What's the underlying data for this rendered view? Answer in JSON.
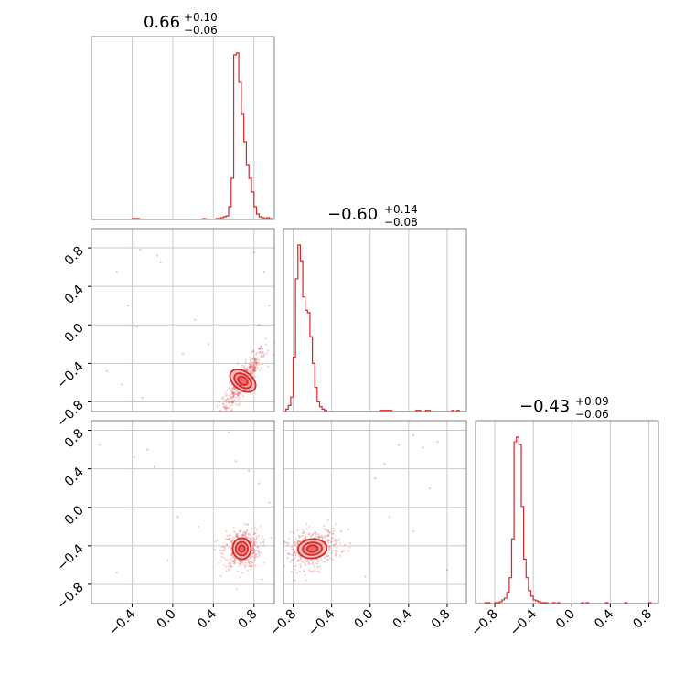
{
  "chart_data": [
    {
      "type": "histogram",
      "panel": "p0-hist",
      "title": {
        "median": "0.66",
        "plus": "+0.10",
        "minus": "−0.06"
      },
      "xlim": [
        -0.8,
        1.0
      ],
      "grid": true,
      "bin_width": 0.025,
      "bins": [
        [
          -0.4,
          1
        ],
        [
          -0.375,
          1
        ],
        [
          -0.35,
          1
        ],
        [
          0.3,
          1
        ],
        [
          0.425,
          1
        ],
        [
          0.45,
          1
        ],
        [
          0.475,
          2
        ],
        [
          0.5,
          3
        ],
        [
          0.525,
          4
        ],
        [
          0.55,
          14
        ],
        [
          0.575,
          45
        ],
        [
          0.6,
          180
        ],
        [
          0.625,
          182
        ],
        [
          0.65,
          150
        ],
        [
          0.675,
          115
        ],
        [
          0.7,
          85
        ],
        [
          0.725,
          60
        ],
        [
          0.75,
          45
        ],
        [
          0.775,
          30
        ],
        [
          0.8,
          14
        ],
        [
          0.825,
          6
        ],
        [
          0.85,
          3
        ],
        [
          0.875,
          2
        ],
        [
          0.9,
          1
        ],
        [
          0.925,
          2
        ],
        [
          0.95,
          1
        ]
      ]
    },
    {
      "type": "histogram",
      "panel": "p1-hist",
      "title": {
        "median": "−0.60",
        "plus": "+0.14",
        "minus": "−0.08"
      },
      "xlim": [
        -0.9,
        1.0
      ],
      "grid": true,
      "bin_width": 0.025,
      "bins": [
        [
          -0.875,
          2
        ],
        [
          -0.85,
          5
        ],
        [
          -0.825,
          12
        ],
        [
          -0.8,
          45
        ],
        [
          -0.775,
          110
        ],
        [
          -0.75,
          138
        ],
        [
          -0.725,
          125
        ],
        [
          -0.7,
          95
        ],
        [
          -0.675,
          84
        ],
        [
          -0.65,
          82
        ],
        [
          -0.625,
          62
        ],
        [
          -0.6,
          40
        ],
        [
          -0.575,
          20
        ],
        [
          -0.55,
          8
        ],
        [
          -0.525,
          4
        ],
        [
          -0.5,
          2
        ],
        [
          -0.475,
          1
        ],
        [
          0.1,
          1
        ],
        [
          0.125,
          1
        ],
        [
          0.15,
          1
        ],
        [
          0.175,
          1
        ],
        [
          0.2,
          1
        ],
        [
          0.475,
          1
        ],
        [
          0.5,
          1
        ],
        [
          0.575,
          1
        ],
        [
          0.6,
          1
        ],
        [
          0.85,
          1
        ],
        [
          0.9,
          1
        ]
      ]
    },
    {
      "type": "histogram",
      "panel": "p2-hist",
      "title": {
        "median": "−0.43",
        "plus": "+0.09",
        "minus": "−0.06"
      },
      "xlim": [
        -1.0,
        0.9
      ],
      "grid": true,
      "bin_width": 0.025,
      "bins": [
        [
          -0.9,
          1
        ],
        [
          -0.875,
          1
        ],
        [
          -0.8,
          1
        ],
        [
          -0.775,
          1
        ],
        [
          -0.75,
          2
        ],
        [
          -0.725,
          4
        ],
        [
          -0.7,
          6
        ],
        [
          -0.675,
          12
        ],
        [
          -0.65,
          28
        ],
        [
          -0.625,
          70
        ],
        [
          -0.6,
          175
        ],
        [
          -0.575,
          180
        ],
        [
          -0.55,
          172
        ],
        [
          -0.525,
          105
        ],
        [
          -0.5,
          48
        ],
        [
          -0.475,
          28
        ],
        [
          -0.45,
          14
        ],
        [
          -0.425,
          8
        ],
        [
          -0.4,
          4
        ],
        [
          -0.375,
          3
        ],
        [
          -0.35,
          2
        ],
        [
          -0.325,
          1
        ],
        [
          -0.3,
          1
        ],
        [
          -0.275,
          1
        ],
        [
          -0.2,
          1
        ],
        [
          -0.15,
          1
        ],
        [
          0.1,
          1
        ],
        [
          0.15,
          1
        ],
        [
          0.35,
          1
        ],
        [
          0.55,
          1
        ],
        [
          0.8,
          1
        ]
      ]
    },
    {
      "type": "scatter",
      "panel": "p10-2d",
      "xlim": [
        -0.8,
        1.0
      ],
      "ylim": [
        -0.9,
        1.0
      ],
      "grid": true,
      "cloud": {
        "x": 0.69,
        "y": -0.58,
        "sx": 0.085,
        "sy": 0.13,
        "rho": 0.9
      },
      "outliers": [
        [
          -0.32,
          0.78
        ],
        [
          -0.15,
          0.72
        ],
        [
          -0.12,
          0.65
        ],
        [
          -0.55,
          0.55
        ],
        [
          -0.44,
          0.2
        ],
        [
          -0.35,
          -0.02
        ],
        [
          -0.65,
          -0.48
        ],
        [
          -0.5,
          -0.62
        ],
        [
          -0.3,
          -0.76
        ],
        [
          0.1,
          -0.3
        ],
        [
          0.22,
          0.05
        ],
        [
          0.35,
          -0.2
        ],
        [
          0.8,
          0.75
        ],
        [
          0.9,
          0.55
        ],
        [
          0.95,
          0.2
        ],
        [
          0.85,
          0.0
        ]
      ],
      "contour_levels": [
        {
          "sx": 0.09,
          "sy": 0.15
        },
        {
          "sx": 0.06,
          "sy": 0.1
        },
        {
          "sx": 0.035,
          "sy": 0.055
        }
      ]
    },
    {
      "type": "scatter",
      "panel": "p20-2d",
      "xlim": [
        -0.8,
        1.0
      ],
      "ylim": [
        -1.0,
        0.9
      ],
      "grid": true,
      "cloud": {
        "x": 0.68,
        "y": -0.43,
        "sx": 0.07,
        "sy": 0.08,
        "rho": 0.1
      },
      "outliers": [
        [
          -0.72,
          0.65
        ],
        [
          -0.38,
          0.52
        ],
        [
          -0.25,
          0.6
        ],
        [
          -0.18,
          0.42
        ],
        [
          0.05,
          -0.1
        ],
        [
          0.25,
          -0.2
        ],
        [
          -0.55,
          -0.68
        ],
        [
          -0.05,
          -0.55
        ],
        [
          0.55,
          0.78
        ],
        [
          0.62,
          0.48
        ],
        [
          0.75,
          0.38
        ],
        [
          0.85,
          0.25
        ],
        [
          0.95,
          0.05
        ],
        [
          0.88,
          -0.75
        ]
      ],
      "contour_levels": [
        {
          "sx": 0.09,
          "sy": 0.11
        },
        {
          "sx": 0.06,
          "sy": 0.07
        },
        {
          "sx": 0.03,
          "sy": 0.035
        }
      ]
    },
    {
      "type": "scatter",
      "panel": "p21-2d",
      "xlim": [
        -0.9,
        1.0
      ],
      "ylim": [
        -1.0,
        0.9
      ],
      "grid": true,
      "cloud": {
        "x": -0.6,
        "y": -0.43,
        "sx": 0.11,
        "sy": 0.08,
        "rho": 0.3
      },
      "outliers": [
        [
          0.05,
          0.3
        ],
        [
          0.15,
          0.45
        ],
        [
          0.3,
          0.65
        ],
        [
          0.45,
          0.75
        ],
        [
          0.55,
          0.62
        ],
        [
          0.7,
          0.68
        ],
        [
          0.62,
          0.2
        ],
        [
          0.8,
          -0.65
        ],
        [
          0.45,
          -0.25
        ],
        [
          0.2,
          -0.1
        ],
        [
          -0.05,
          -0.72
        ],
        [
          -0.3,
          -0.25
        ]
      ],
      "contour_levels": [
        {
          "sx": 0.15,
          "sy": 0.1
        },
        {
          "sx": 0.1,
          "sy": 0.065
        },
        {
          "sx": 0.055,
          "sy": 0.035
        }
      ]
    }
  ],
  "axes": {
    "p0_x_ticks": [
      "−0.4",
      "0.0",
      "0.4",
      "0.8"
    ],
    "p1_x_ticks": [
      "−0.8",
      "−0.4",
      "0.0",
      "0.4",
      "0.8"
    ],
    "p2_x_ticks": [
      "−0.8",
      "−0.4",
      "0.0",
      "0.4",
      "0.8"
    ],
    "p1_y_ticks": [
      "0.8",
      "0.4",
      "0.0",
      "−0.4",
      "−0.8"
    ],
    "p2_y_ticks": [
      "0.8",
      "0.4",
      "0.0",
      "−0.4",
      "−0.8"
    ]
  },
  "colors": {
    "series": "#d62728",
    "fill_light": "#f4b8b8",
    "fill_mid": "#ec9090",
    "fill_dark": "#e06666",
    "grid": "#c8c8c8",
    "frame": "#808080"
  }
}
